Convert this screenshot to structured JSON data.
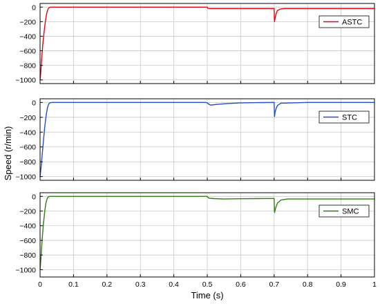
{
  "chart_data": {
    "type": "line",
    "xlabel": "Time (s)",
    "ylabel": "Speed (r/min)",
    "xlim": [
      0,
      1
    ],
    "xticks": [
      0,
      0.1,
      0.2,
      0.3,
      0.4,
      0.5,
      0.6,
      0.7,
      0.8,
      0.9,
      1
    ],
    "xtick_labels": [
      "0",
      "0.1",
      "0.2",
      "0.3",
      "0.4",
      "0.5",
      "0.6",
      "0.7",
      "0.8",
      "0.9",
      "1"
    ],
    "grid": true,
    "legend_placement": "upper-right",
    "panels": [
      {
        "ylim": [
          -1050,
          50
        ],
        "yticks": [
          0,
          -200,
          -400,
          -600,
          -800,
          -1000
        ],
        "ytick_labels": [
          "0",
          "−200",
          "−400",
          "−600",
          "−800",
          "−1000"
        ],
        "series": [
          {
            "name": "ASTC",
            "color": "#e8000b",
            "x": [
              0,
              0.002,
              0.005,
              0.008,
              0.012,
              0.016,
              0.02,
              0.024,
              0.028,
              0.032,
              0.04,
              0.1,
              0.2,
              0.3,
              0.4,
              0.5,
              0.501,
              0.502,
              0.51,
              0.55,
              0.6,
              0.65,
              0.699,
              0.7,
              0.701,
              0.703,
              0.706,
              0.71,
              0.72,
              0.73,
              0.8,
              0.9,
              1.0
            ],
            "y": [
              -1000,
              -900,
              -700,
              -520,
              -340,
              -190,
              -80,
              -25,
              -5,
              0,
              0,
              0,
              0,
              0,
              0,
              0,
              -10,
              -18,
              -20,
              -20,
              -20,
              -20,
              -20,
              -20,
              -200,
              -150,
              -90,
              -45,
              -25,
              -20,
              -20,
              -20,
              -20
            ]
          }
        ]
      },
      {
        "ylim": [
          -1050,
          50
        ],
        "yticks": [
          0,
          -200,
          -400,
          -600,
          -800,
          -1000
        ],
        "ytick_labels": [
          "0",
          "−200",
          "−400",
          "−600",
          "−800",
          "−1000"
        ],
        "series": [
          {
            "name": "STC",
            "color": "#1f4fc8",
            "x": [
              0,
              0.003,
              0.006,
              0.01,
              0.014,
              0.018,
              0.022,
              0.026,
              0.03,
              0.035,
              0.1,
              0.2,
              0.3,
              0.4,
              0.495,
              0.5,
              0.505,
              0.51,
              0.53,
              0.56,
              0.6,
              0.65,
              0.699,
              0.7,
              0.701,
              0.703,
              0.706,
              0.71,
              0.72,
              0.8,
              0.9,
              1.0
            ],
            "y": [
              -1000,
              -880,
              -720,
              -520,
              -330,
              -180,
              -70,
              -20,
              -3,
              0,
              0,
              0,
              0,
              0,
              0,
              -5,
              -25,
              -35,
              -25,
              -15,
              -5,
              -2,
              0,
              0,
              -190,
              -130,
              -80,
              -40,
              -10,
              0,
              0,
              0
            ]
          }
        ]
      },
      {
        "ylim": [
          -1100,
          50
        ],
        "yticks": [
          0,
          -200,
          -400,
          -600,
          -800,
          -1000
        ],
        "ytick_labels": [
          "0",
          "−200",
          "−400",
          "−600",
          "−800",
          "−1000"
        ],
        "series": [
          {
            "name": "SMC",
            "color": "#2e7d12",
            "x": [
              0,
              0.003,
              0.006,
              0.01,
              0.014,
              0.018,
              0.022,
              0.026,
              0.03,
              0.04,
              0.1,
              0.2,
              0.3,
              0.4,
              0.499,
              0.5,
              0.505,
              0.52,
              0.55,
              0.6,
              0.65,
              0.699,
              0.7,
              0.701,
              0.705,
              0.71,
              0.72,
              0.74,
              0.8,
              0.9,
              1.0
            ],
            "y": [
              -1000,
              -820,
              -600,
              -380,
              -200,
              -80,
              -20,
              -3,
              0,
              0,
              0,
              0,
              0,
              0,
              0,
              -5,
              -25,
              -30,
              -35,
              -32,
              -30,
              -28,
              -28,
              -220,
              -150,
              -90,
              -50,
              -35,
              -35,
              -35,
              -35
            ]
          }
        ]
      }
    ]
  }
}
